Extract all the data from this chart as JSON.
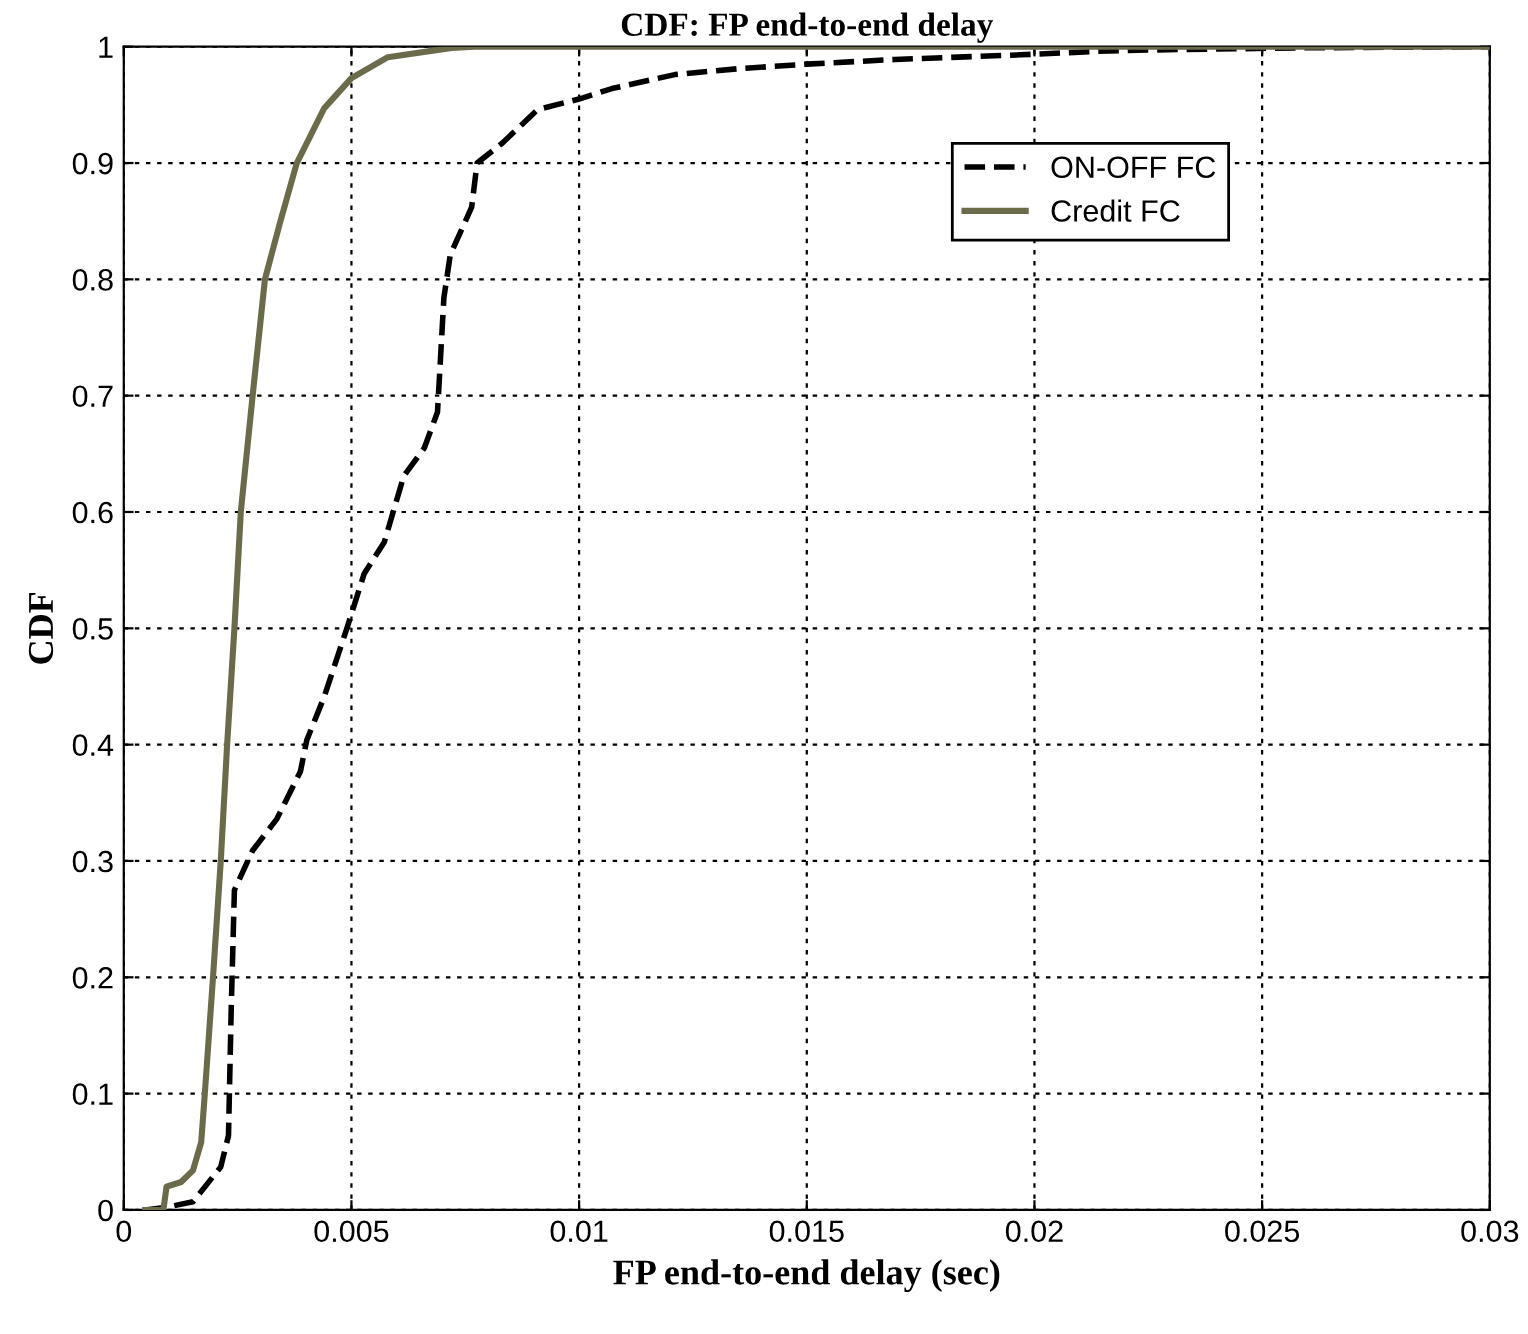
{
  "chart_data": {
    "type": "line",
    "title": "CDF: FP end-to-end delay",
    "xlabel": "FP end-to-end delay (sec)",
    "ylabel": "CDF",
    "xlim": [
      0,
      0.03
    ],
    "xticks": [
      0,
      0.005,
      0.01,
      0.015,
      0.02,
      0.025,
      0.03
    ],
    "ylim": [
      0,
      1
    ],
    "yticks": [
      0,
      0.1,
      0.2,
      0.3,
      0.4,
      0.5,
      0.6,
      0.7,
      0.8,
      0.9,
      1
    ],
    "grid": true,
    "legend": "top right",
    "series": [
      {
        "name": "ON-OFF FC",
        "color": "#000000",
        "line_style": "dashed",
        "x": [
          0.00047,
          0.0009,
          0.00152,
          0.00213,
          0.0023,
          0.00236,
          0.00243,
          0.00283,
          0.00336,
          0.00388,
          0.00402,
          0.0044,
          0.0049,
          0.00528,
          0.00572,
          0.00615,
          0.0066,
          0.00689,
          0.00703,
          0.00717,
          0.00764,
          0.00776,
          0.00831,
          0.00909,
          0.01,
          0.01072,
          0.0121,
          0.01348,
          0.015,
          0.01693,
          0.01969,
          0.0214,
          0.02225,
          0.0258,
          0.03
        ],
        "values": [
          0,
          0.002,
          0.007,
          0.037,
          0.064,
          0.173,
          0.275,
          0.309,
          0.336,
          0.377,
          0.404,
          0.441,
          0.5,
          0.547,
          0.574,
          0.631,
          0.655,
          0.686,
          0.784,
          0.821,
          0.862,
          0.9,
          0.917,
          0.946,
          0.955,
          0.964,
          0.976,
          0.981,
          0.985,
          0.989,
          0.993,
          0.996,
          0.997,
          0.999,
          1
        ]
      },
      {
        "name": "Credit FC",
        "color": "#6b6b4b",
        "line_style": "solid",
        "x": [
          0.00047,
          0.00087,
          0.00094,
          0.00126,
          0.00152,
          0.0017,
          0.00178,
          0.00196,
          0.00213,
          0.00227,
          0.00243,
          0.00257,
          0.00283,
          0.0031,
          0.00344,
          0.0038,
          0.0044,
          0.005,
          0.0058,
          0.0072,
          0.0077,
          0.03
        ],
        "values": [
          0,
          0,
          0.02,
          0.024,
          0.034,
          0.058,
          0.1,
          0.2,
          0.3,
          0.4,
          0.5,
          0.6,
          0.7,
          0.8,
          0.85,
          0.9,
          0.947,
          0.973,
          0.991,
          0.999,
          1,
          1
        ]
      }
    ]
  }
}
